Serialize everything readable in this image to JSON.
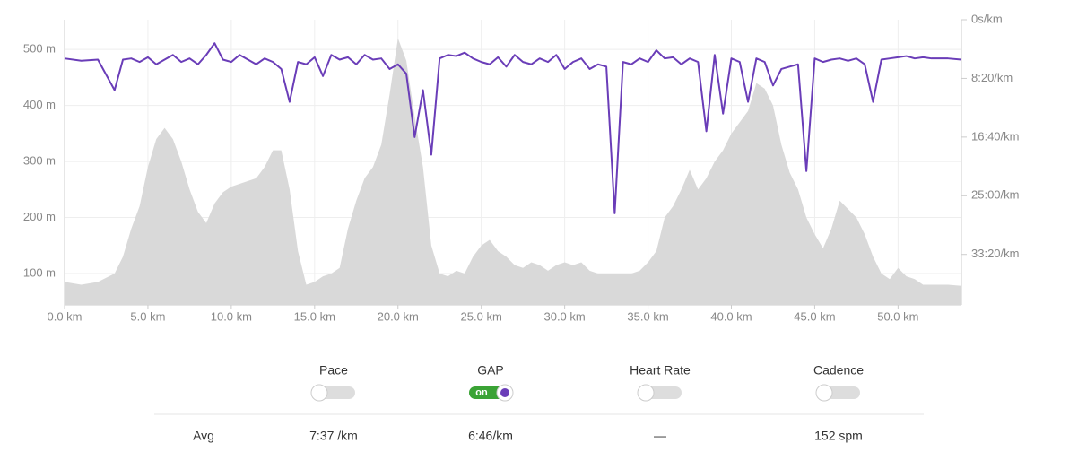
{
  "chart_data": {
    "type": "line",
    "x": [
      0,
      1,
      2,
      3,
      3.5,
      4,
      4.5,
      5,
      5.5,
      6,
      6.5,
      7,
      7.5,
      8,
      8.5,
      9,
      9.5,
      10,
      10.5,
      11,
      11.5,
      12,
      12.5,
      13,
      13.5,
      14,
      14.5,
      15,
      15.5,
      16,
      16.5,
      17,
      17.5,
      18,
      18.5,
      19,
      19.5,
      20,
      20.5,
      21,
      21.5,
      22,
      22.5,
      23,
      23.5,
      24,
      24.5,
      25,
      25.5,
      26,
      26.5,
      27,
      27.5,
      28,
      28.5,
      29,
      29.5,
      30,
      30.5,
      31,
      31.5,
      32,
      32.5,
      33,
      33.5,
      34,
      34.5,
      35,
      35.5,
      36,
      36.5,
      37,
      37.5,
      38,
      38.5,
      39,
      39.5,
      40,
      40.5,
      41,
      41.5,
      42,
      42.5,
      43,
      43.5,
      44,
      44.5,
      45,
      45.5,
      46,
      46.5,
      47,
      47.5,
      48,
      48.5,
      49,
      49.5,
      50,
      50.5,
      51,
      51.5,
      52,
      53,
      53.8
    ],
    "series": [
      {
        "kind": "area",
        "color": "#d9d9d9",
        "values": [
          85,
          80,
          85,
          100,
          130,
          180,
          220,
          290,
          340,
          360,
          340,
          300,
          250,
          210,
          190,
          225,
          245,
          255,
          260,
          265,
          270,
          290,
          320,
          320,
          250,
          140,
          80,
          85,
          95,
          100,
          110,
          180,
          230,
          270,
          290,
          330,
          420,
          520,
          480,
          380,
          290,
          150,
          100,
          95,
          105,
          100,
          130,
          150,
          160,
          140,
          130,
          115,
          110,
          120,
          115,
          105,
          115,
          120,
          115,
          120,
          105,
          100,
          100,
          100,
          100,
          100,
          105,
          120,
          140,
          200,
          220,
          250,
          285,
          250,
          270,
          300,
          320,
          350,
          370,
          390,
          440,
          430,
          400,
          330,
          280,
          250,
          200,
          170,
          145,
          180,
          230,
          215,
          200,
          170,
          130,
          100,
          90,
          110,
          95,
          90,
          80,
          80,
          80,
          78
        ]
      },
      {
        "name": "GAP",
        "kind": "line",
        "axis": "y2",
        "color": "#6a3db8",
        "values": [
          330,
          350,
          340,
          600,
          340,
          330,
          360,
          320,
          380,
          340,
          300,
          360,
          330,
          380,
          300,
          200,
          340,
          360,
          300,
          340,
          380,
          330,
          360,
          420,
          700,
          360,
          380,
          320,
          480,
          300,
          340,
          320,
          380,
          300,
          340,
          330,
          420,
          380,
          460,
          1000,
          600,
          1150,
          330,
          300,
          310,
          280,
          330,
          360,
          380,
          320,
          400,
          300,
          360,
          380,
          330,
          360,
          300,
          420,
          360,
          330,
          420,
          380,
          400,
          1650,
          360,
          380,
          330,
          360,
          260,
          330,
          320,
          380,
          330,
          360,
          950,
          300,
          800,
          330,
          360,
          700,
          330,
          360,
          560,
          420,
          400,
          380,
          1290,
          330,
          360,
          340,
          330,
          350,
          330,
          380,
          700,
          340,
          330,
          320,
          310,
          330,
          320,
          330,
          330,
          340
        ]
      }
    ],
    "xlim": [
      0,
      53.8
    ],
    "xticks": [
      {
        "value": 0,
        "label": "0.0 km"
      },
      {
        "value": 5,
        "label": "5.0 km"
      },
      {
        "value": 10,
        "label": "10.0 km"
      },
      {
        "value": 15,
        "label": "15.0 km"
      },
      {
        "value": 20,
        "label": "20.0 km"
      },
      {
        "value": 25,
        "label": "25.0 km"
      },
      {
        "value": 30,
        "label": "30.0 km"
      },
      {
        "value": 35,
        "label": "35.0 km"
      },
      {
        "value": 40,
        "label": "40.0 km"
      },
      {
        "value": 45,
        "label": "45.0 km"
      },
      {
        "value": 50,
        "label": "50.0 km"
      }
    ],
    "ylim": [
      44,
      553
    ],
    "yticks": [
      {
        "value": 100,
        "label": "100 m"
      },
      {
        "value": 200,
        "label": "200 m"
      },
      {
        "value": 300,
        "label": "300 m"
      },
      {
        "value": 400,
        "label": "400 m"
      },
      {
        "value": 500,
        "label": "500 m"
      }
    ],
    "y2lim": [
      0,
      2430
    ],
    "y2inverted": true,
    "y2ticks": [
      {
        "value": 0,
        "label": "0s/km"
      },
      {
        "value": 500,
        "label": "8:20/km"
      },
      {
        "value": 1000,
        "label": "16:40/km"
      },
      {
        "value": 1500,
        "label": "25:00/km"
      },
      {
        "value": 2000,
        "label": "33:20/km"
      }
    ],
    "grid": true
  },
  "controls": [
    {
      "label": "Pace",
      "on": false
    },
    {
      "label": "GAP",
      "on": true,
      "badge": "on"
    },
    {
      "label": "Heart Rate",
      "on": false
    },
    {
      "label": "Cadence",
      "on": false
    }
  ],
  "summary": {
    "label": "Avg",
    "values": [
      "7:37 /km",
      "6:46/km",
      "—",
      "152 spm"
    ]
  }
}
